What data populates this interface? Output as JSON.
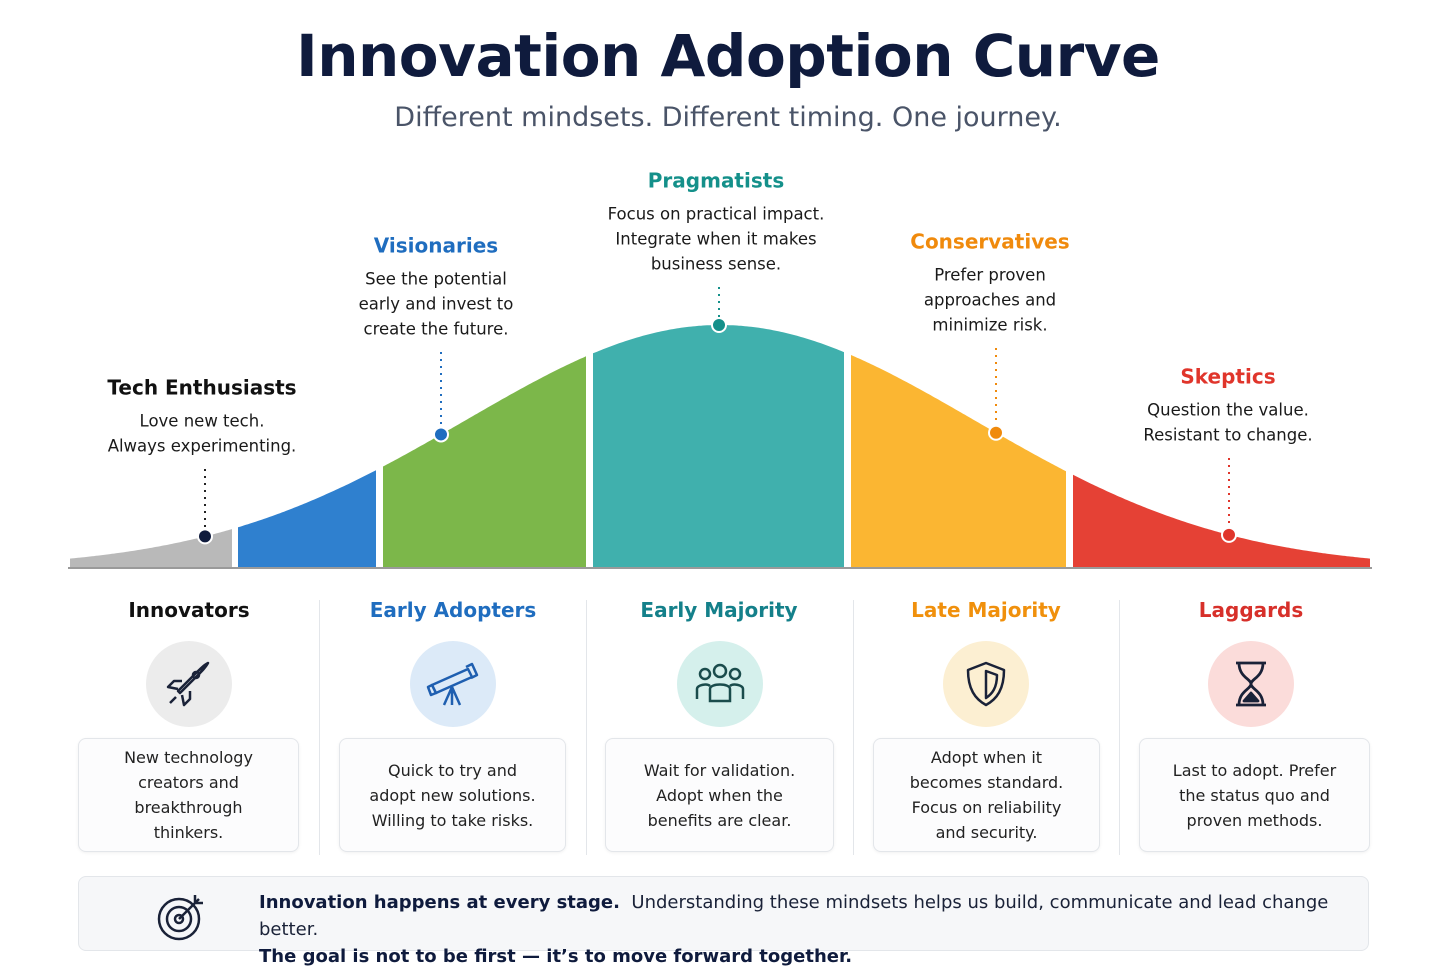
{
  "header": {
    "title": "Innovation Adoption Curve",
    "subtitle": "Different mindsets. Different timing. One journey."
  },
  "mindsets": [
    {
      "name": "Tech Enthusiasts",
      "lines": [
        "Love new tech.",
        "Always experimenting."
      ]
    },
    {
      "name": "Visionaries",
      "lines": [
        "See the potential",
        "early and invest to",
        "create the future."
      ]
    },
    {
      "name": "Pragmatists",
      "lines": [
        "Focus on practical impact.",
        "Integrate when it makes",
        "business sense."
      ]
    },
    {
      "name": "Conservatives",
      "lines": [
        "Prefer proven",
        "approaches and",
        "minimize risk."
      ]
    },
    {
      "name": "Skeptics",
      "lines": [
        "Question the value.",
        "Resistant to change."
      ]
    }
  ],
  "segments": [
    {
      "name": "Innovators",
      "description": "New technology creators and breakthrough thinkers."
    },
    {
      "name": "Early Adopters",
      "description": "Quick to try and adopt new solutions. Willing to take risks."
    },
    {
      "name": "Early Majority",
      "description": "Wait for validation. Adopt when the benefits are clear."
    },
    {
      "name": "Late Majority",
      "description": "Adopt when it becomes standard. Focus on reliability and security."
    },
    {
      "name": "Laggards",
      "description": "Last to adopt. Prefer the status quo and proven methods."
    }
  ],
  "footer": {
    "lead": "Innovation happens at every stage.",
    "text": "Understanding these mindsets helps us build, communicate and lead change better.",
    "closing": "The goal is not to be first — it’s to move forward together."
  }
}
